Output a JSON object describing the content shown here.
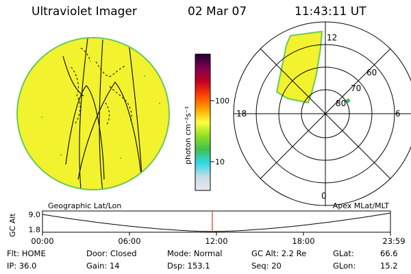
{
  "header": {
    "instrument": "Ultraviolet Imager",
    "date": "02 Mar 07",
    "time": "11:43:11 UT"
  },
  "colorbar": {
    "unit_label": "photon cm⁻²s⁻¹",
    "ticks": [
      {
        "label": "100",
        "value": 100
      },
      {
        "label": "10",
        "value": 10
      }
    ],
    "gradient": [
      "#e8e8e8",
      "#c8dce8",
      "#30d8e8",
      "#40c050",
      "#90e020",
      "#ffff40",
      "#ffa000",
      "#ff4000",
      "#c00020",
      "#800050",
      "#200030"
    ]
  },
  "polar_plot": {
    "radial_labels": [
      "80",
      "70",
      "60"
    ],
    "mlt_labels": {
      "top": "12",
      "right": "6",
      "bottom": "0",
      "left": "18"
    }
  },
  "altitude_panel": {
    "ylabel": "GC Alt",
    "ytick_top": "9.0",
    "ytick_bottom": "1.8",
    "left_title": "Geographic Lat/Lon",
    "right_title": "Apex MLat/MLT",
    "time_ticks": [
      "00:00",
      "06:00",
      "12:00",
      "18:00",
      "23:59"
    ],
    "current_time_fraction": 0.488
  },
  "status": {
    "flt": "Flt: HOME",
    "ip": "IP: 36.0",
    "door": "Door: Closed",
    "gain": "Gain: 14",
    "mode": "Mode: Normal",
    "dsp": "Dsp:  153.1",
    "gcalt": "GC Alt: 2.2 Re",
    "seq": "Seq: 20",
    "glat_label": "GLat:",
    "glat_value": "66.6",
    "glon_label": "GLon:",
    "glon_value": "15.2"
  },
  "colors": {
    "aurora_fill": "#f2f22e",
    "disk_edge": "#6ac85a",
    "marker": "#e03020"
  }
}
